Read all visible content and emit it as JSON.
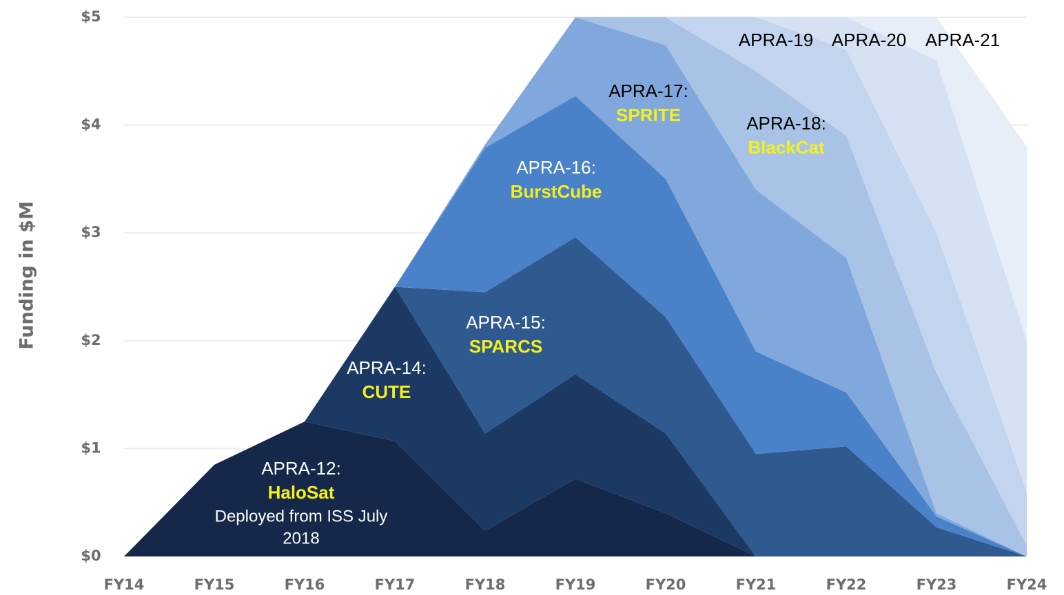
{
  "chart_data": {
    "type": "stacked_area",
    "y_label": "Funding in $M",
    "categories": [
      "FY14",
      "FY15",
      "FY16",
      "FY17",
      "FY18",
      "FY19",
      "FY20",
      "FY21",
      "FY22",
      "FY23",
      "FY24"
    ],
    "ylim": [
      0,
      5
    ],
    "yticks": [
      {
        "value": 0,
        "label": "$0"
      },
      {
        "value": 1,
        "label": "$1"
      },
      {
        "value": 2,
        "label": "$2"
      },
      {
        "value": 3,
        "label": "$3"
      },
      {
        "value": 4,
        "label": "$4"
      },
      {
        "value": 5,
        "label": "$5"
      }
    ],
    "grid": true,
    "series": [
      {
        "name": "APRA-12:",
        "project": "HaloSat",
        "note": [
          "Deployed from ISS July",
          "2018"
        ],
        "color": "#15284a",
        "values": [
          0,
          0.85,
          1.25,
          1.07,
          0.24,
          0.72,
          0.4,
          0,
          0,
          0,
          0
        ]
      },
      {
        "name": "APRA-14:",
        "project": "CUTE",
        "color": "#1c3963",
        "values": [
          0,
          0,
          0,
          1.43,
          0.9,
          0.97,
          0.74,
          0,
          0,
          0,
          0
        ]
      },
      {
        "name": "APRA-15:",
        "project": "SPARCS",
        "color": "#2f5a90",
        "values": [
          0,
          0,
          0,
          0,
          1.31,
          1.27,
          1.08,
          0.95,
          1.02,
          0.27,
          0
        ]
      },
      {
        "name": "APRA-16:",
        "project": "BurstCube",
        "color": "#4a82c9",
        "values": [
          0,
          0,
          0,
          0,
          1.34,
          1.31,
          1.28,
          0.95,
          0.5,
          0.1,
          0
        ]
      },
      {
        "name": "APRA-17:",
        "project": "SPRITE",
        "color": "#80a8dd",
        "values": [
          0,
          0,
          0,
          0,
          0.03,
          0.73,
          1.24,
          1.5,
          1.25,
          0.03,
          0
        ]
      },
      {
        "name": "APRA-18:",
        "project": "BlackCat",
        "color": "#a9c3e7",
        "values": [
          0,
          0,
          0,
          0,
          0,
          0,
          0.26,
          1.1,
          1.13,
          1.3,
          0.1
        ]
      },
      {
        "name": "APRA-19",
        "color": "#c3d4ee",
        "values": [
          0,
          0,
          0,
          0,
          0,
          0,
          0,
          0.5,
          0.8,
          1.3,
          0.5
        ]
      },
      {
        "name": "APRA-20",
        "color": "#d6e2f3",
        "values": [
          0,
          0,
          0,
          0,
          0,
          0,
          0,
          0,
          0.3,
          1.6,
          1.4
        ]
      },
      {
        "name": "APRA-21",
        "color": "#e7eef8",
        "values": [
          0,
          0,
          0,
          0,
          0,
          0,
          0,
          0,
          0,
          0.4,
          1.8
        ]
      }
    ]
  }
}
